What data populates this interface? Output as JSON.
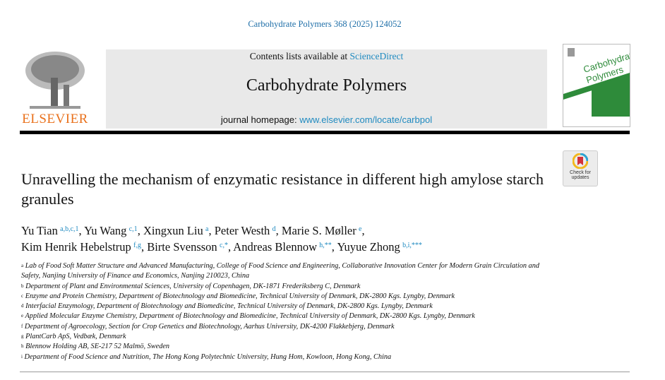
{
  "journal_ref": "Carbohydrate Polymers 368 (2025) 124052",
  "publisher_logo": "ELSEVIER",
  "header": {
    "contents_prefix": "Contents lists available at ",
    "contents_link": "ScienceDirect",
    "journal_title": "Carbohydrate Polymers",
    "homepage_prefix": "journal homepage: ",
    "homepage_link": "www.elsevier.com/locate/carbpol"
  },
  "cover": {
    "title_line1": "Carbohydrate",
    "title_line2": "Polymers"
  },
  "check_updates": {
    "line1": "Check for",
    "line2": "updates"
  },
  "title": "Unravelling the mechanism of enzymatic resistance in different high amylose starch granules",
  "authors": [
    {
      "name": "Yu Tian",
      "sup": "a,b,c,1"
    },
    {
      "name": "Yu Wang",
      "sup": "c,1"
    },
    {
      "name": "Xingxun Liu",
      "sup": "a"
    },
    {
      "name": "Peter Westh",
      "sup": "d"
    },
    {
      "name": "Marie S. Møller",
      "sup": "e"
    },
    {
      "name": "Kim Henrik Hebelstrup",
      "sup": "f,g"
    },
    {
      "name": "Birte Svensson",
      "sup": "c,*"
    },
    {
      "name": "Andreas Blennow",
      "sup": "h,**"
    },
    {
      "name": "Yuyue Zhong",
      "sup": "b,i,***"
    }
  ],
  "affiliations": [
    {
      "key": "a",
      "text": "Lab of Food Soft Matter Structure and Advanced Manufacturing, College of Food Science and Engineering, Collaborative Innovation Center for Modern Grain Circulation and Safety, Nanjing University of Finance and Economics, Nanjing 210023, China"
    },
    {
      "key": "b",
      "text": "Department of Plant and Environmental Sciences, University of Copenhagen, DK-1871 Frederiksberg C, Denmark"
    },
    {
      "key": "c",
      "text": "Enzyme and Protein Chemistry, Department of Biotechnology and Biomedicine, Technical University of Denmark, DK-2800 Kgs. Lyngby, Denmark"
    },
    {
      "key": "d",
      "text": "Interfacial Enzymology, Department of Biotechnology and Biomedicine, Technical University of Denmark, DK-2800 Kgs. Lyngby, Denmark"
    },
    {
      "key": "e",
      "text": "Applied Molecular Enzyme Chemistry, Department of Biotechnology and Biomedicine, Technical University of Denmark, DK-2800 Kgs. Lyngby, Denmark"
    },
    {
      "key": "f",
      "text": "Department of Agroecology, Section for Crop Genetics and Biotechnology, Aarhus University, DK-4200 Flakkebjerg, Denmark"
    },
    {
      "key": "g",
      "text": "PlantCarb ApS, Vedbæk, Denmark"
    },
    {
      "key": "h",
      "text": "Blennow Holding AB, SE-217 52 Malmö, Sweden"
    },
    {
      "key": "i",
      "text": "Department of Food Science and Nutrition, The Hong Kong Polytechnic University, Hung Hom, Kowloon, Hong Kong, China"
    }
  ],
  "colors": {
    "link": "#1f8ac0",
    "elsevier": "#e9711c",
    "cover_green": "#2e8b3a"
  }
}
